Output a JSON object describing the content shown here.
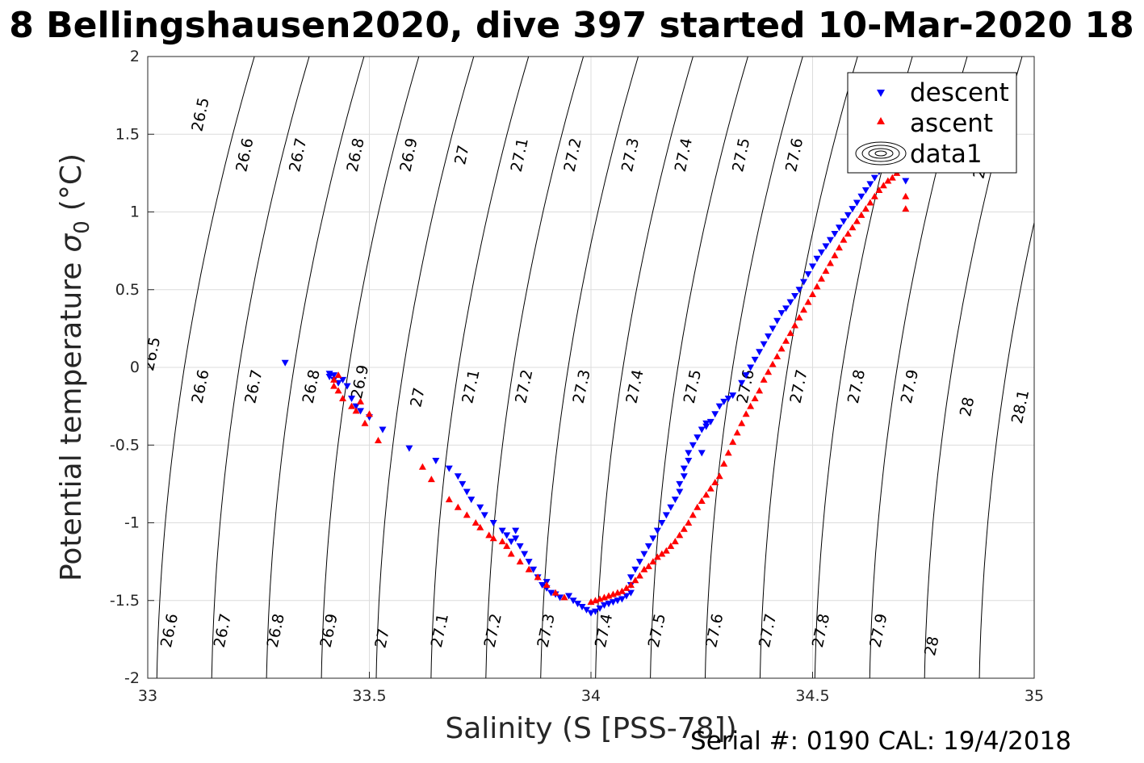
{
  "chart_data": {
    "type": "scatter",
    "title": "8 Bellingshausen2020, dive 397 started 10-Mar-2020 18",
    "xlabel": "Salinity (S [PSS-78])",
    "ylabel": "Potential temperature",
    "ylabel_symbol": "σ",
    "ylabel_subscript": "0",
    "ylabel_unit": "(°C)",
    "xlim": [
      33,
      35
    ],
    "ylim": [
      -2,
      2
    ],
    "x_ticks": [
      "33",
      "33.5",
      "34",
      "34.5",
      "35"
    ],
    "y_ticks": [
      "-2",
      "-1.5",
      "-1",
      "-0.5",
      "0",
      "0.5",
      "1",
      "1.5",
      "2"
    ],
    "grid": true,
    "legend_position": "top-right",
    "legend": [
      "descent",
      "ascent",
      "data1"
    ],
    "footer": "Serial #: 0190  CAL: 19/4/2018",
    "colors": {
      "descent": "#0000ff",
      "ascent": "#ff0000",
      "contour": "#000000",
      "grid": "#dcdcdc"
    },
    "contours": [
      26.5,
      26.6,
      26.7,
      26.8,
      26.9,
      27,
      27.1,
      27.2,
      27.3,
      27.4,
      27.5,
      27.6,
      27.7,
      27.8,
      27.9,
      28,
      28.1
    ],
    "contour_labels": [
      {
        "text": "26.5",
        "x": 33.13,
        "y": 1.62
      },
      {
        "text": "26.6",
        "x": 33.23,
        "y": 1.36
      },
      {
        "text": "26.7",
        "x": 33.35,
        "y": 1.36
      },
      {
        "text": "26.8",
        "x": 33.48,
        "y": 1.36
      },
      {
        "text": "26.9",
        "x": 33.6,
        "y": 1.36
      },
      {
        "text": "27",
        "x": 33.72,
        "y": 1.36
      },
      {
        "text": "27.1",
        "x": 33.85,
        "y": 1.36
      },
      {
        "text": "27.2",
        "x": 33.97,
        "y": 1.36
      },
      {
        "text": "27.3",
        "x": 34.1,
        "y": 1.36
      },
      {
        "text": "27.4",
        "x": 34.22,
        "y": 1.36
      },
      {
        "text": "27.5",
        "x": 34.35,
        "y": 1.36
      },
      {
        "text": "27.6",
        "x": 34.47,
        "y": 1.36
      },
      {
        "text": "28",
        "x": 34.89,
        "y": 1.27
      },
      {
        "text": "26.5",
        "x": 33.02,
        "y": 0.08
      },
      {
        "text": "26.6",
        "x": 33.13,
        "y": -0.13
      },
      {
        "text": "26.7",
        "x": 33.25,
        "y": -0.13
      },
      {
        "text": "26.8",
        "x": 33.38,
        "y": -0.13
      },
      {
        "text": "26.9",
        "x": 33.49,
        "y": -0.1
      },
      {
        "text": "27",
        "x": 33.62,
        "y": -0.2
      },
      {
        "text": "27.1",
        "x": 33.74,
        "y": -0.13
      },
      {
        "text": "27.2",
        "x": 33.86,
        "y": -0.13
      },
      {
        "text": "27.3",
        "x": 33.99,
        "y": -0.13
      },
      {
        "text": "27.4",
        "x": 34.11,
        "y": -0.13
      },
      {
        "text": "27.5",
        "x": 34.24,
        "y": -0.13
      },
      {
        "text": "27.6",
        "x": 34.36,
        "y": -0.13
      },
      {
        "text": "27.7",
        "x": 34.48,
        "y": -0.13
      },
      {
        "text": "27.8",
        "x": 34.61,
        "y": -0.13
      },
      {
        "text": "27.9",
        "x": 34.73,
        "y": -0.13
      },
      {
        "text": "28",
        "x": 34.86,
        "y": -0.26
      },
      {
        "text": "28.1",
        "x": 34.98,
        "y": -0.26
      },
      {
        "text": "26.6",
        "x": 33.06,
        "y": -1.7
      },
      {
        "text": "26.7",
        "x": 33.18,
        "y": -1.7
      },
      {
        "text": "26.8",
        "x": 33.3,
        "y": -1.7
      },
      {
        "text": "26.9",
        "x": 33.42,
        "y": -1.7
      },
      {
        "text": "27",
        "x": 33.54,
        "y": -1.75
      },
      {
        "text": "27.1",
        "x": 33.67,
        "y": -1.7
      },
      {
        "text": "27.2",
        "x": 33.79,
        "y": -1.7
      },
      {
        "text": "27.3",
        "x": 33.91,
        "y": -1.7
      },
      {
        "text": "27.4",
        "x": 34.04,
        "y": -1.7
      },
      {
        "text": "27.5",
        "x": 34.16,
        "y": -1.7
      },
      {
        "text": "27.6",
        "x": 34.29,
        "y": -1.7
      },
      {
        "text": "27.7",
        "x": 34.41,
        "y": -1.7
      },
      {
        "text": "27.8",
        "x": 34.53,
        "y": -1.7
      },
      {
        "text": "27.9",
        "x": 34.66,
        "y": -1.7
      },
      {
        "text": "28",
        "x": 34.78,
        "y": -1.8
      }
    ],
    "series": [
      {
        "name": "descent",
        "marker": "triangle-down",
        "x": [
          33.31,
          33.41,
          33.41,
          33.42,
          33.42,
          33.43,
          33.44,
          33.45,
          33.46,
          33.47,
          33.48,
          33.5,
          33.53,
          33.59,
          33.65,
          33.68,
          33.7,
          33.71,
          33.72,
          33.73,
          33.75,
          33.76,
          33.78,
          33.8,
          33.81,
          33.82,
          33.83,
          33.83,
          33.84,
          33.85,
          33.86,
          33.87,
          33.88,
          33.89,
          33.9,
          33.9,
          33.91,
          33.92,
          33.93,
          33.95,
          33.96,
          33.97,
          33.98,
          33.99,
          34.0,
          34.01,
          34.02,
          34.03,
          34.04,
          34.05,
          34.06,
          34.07,
          34.08,
          34.09,
          34.09,
          34.09,
          34.1,
          34.11,
          34.12,
          34.13,
          34.14,
          34.15,
          34.16,
          34.17,
          34.18,
          34.19,
          34.2,
          34.2,
          34.21,
          34.21,
          34.22,
          34.22,
          34.23,
          34.24,
          34.25,
          34.26,
          34.26,
          34.25,
          34.27,
          34.28,
          34.29,
          34.3,
          34.31,
          34.32,
          34.34,
          34.35,
          34.36,
          34.37,
          34.38,
          34.39,
          34.4,
          34.41,
          34.42,
          34.43,
          34.44,
          34.45,
          34.46,
          34.47,
          34.48,
          34.49,
          34.5,
          34.51,
          34.52,
          34.53,
          34.54,
          34.55,
          34.56,
          34.57,
          34.58,
          34.59,
          34.6,
          34.61,
          34.62,
          34.63,
          34.64,
          34.65,
          34.66,
          34.67,
          34.68,
          34.69,
          34.7,
          34.71
        ],
        "y": [
          0.03,
          -0.04,
          -0.06,
          -0.05,
          -0.08,
          -0.1,
          -0.08,
          -0.12,
          -0.2,
          -0.25,
          -0.28,
          -0.32,
          -0.4,
          -0.52,
          -0.6,
          -0.65,
          -0.7,
          -0.75,
          -0.8,
          -0.85,
          -0.9,
          -0.95,
          -1.0,
          -1.05,
          -1.08,
          -1.12,
          -1.05,
          -1.1,
          -1.15,
          -1.2,
          -1.25,
          -1.3,
          -1.35,
          -1.4,
          -1.38,
          -1.42,
          -1.45,
          -1.46,
          -1.48,
          -1.47,
          -1.5,
          -1.52,
          -1.54,
          -1.56,
          -1.58,
          -1.57,
          -1.55,
          -1.53,
          -1.52,
          -1.51,
          -1.5,
          -1.49,
          -1.47,
          -1.45,
          -1.4,
          -1.35,
          -1.3,
          -1.25,
          -1.2,
          -1.15,
          -1.1,
          -1.05,
          -1.0,
          -0.95,
          -0.9,
          -0.85,
          -0.8,
          -0.75,
          -0.7,
          -0.65,
          -0.6,
          -0.55,
          -0.5,
          -0.45,
          -0.4,
          -0.38,
          -0.36,
          -0.55,
          -0.35,
          -0.3,
          -0.25,
          -0.22,
          -0.2,
          -0.18,
          -0.1,
          -0.05,
          0.0,
          0.05,
          0.1,
          0.15,
          0.2,
          0.25,
          0.3,
          0.35,
          0.38,
          0.42,
          0.46,
          0.5,
          0.55,
          0.6,
          0.65,
          0.7,
          0.74,
          0.78,
          0.82,
          0.86,
          0.9,
          0.94,
          0.98,
          1.02,
          1.06,
          1.1,
          1.14,
          1.18,
          1.22,
          1.26,
          1.3,
          1.34,
          1.38,
          1.42,
          1.3,
          1.2
        ]
      },
      {
        "name": "ascent",
        "marker": "triangle-up",
        "x": [
          33.42,
          33.42,
          33.43,
          33.43,
          33.44,
          33.46,
          33.47,
          33.48,
          33.49,
          33.5,
          33.52,
          33.62,
          33.64,
          33.68,
          33.7,
          33.72,
          33.74,
          33.75,
          33.77,
          33.78,
          33.8,
          33.81,
          33.82,
          33.84,
          33.86,
          33.88,
          33.9,
          33.92,
          33.94,
          34.0,
          34.01,
          34.02,
          34.03,
          34.04,
          34.05,
          34.06,
          34.07,
          34.08,
          34.09,
          34.1,
          34.11,
          34.12,
          34.13,
          34.14,
          34.15,
          34.16,
          34.17,
          34.18,
          34.19,
          34.2,
          34.21,
          34.22,
          34.23,
          34.24,
          34.25,
          34.26,
          34.27,
          34.28,
          34.29,
          34.3,
          34.31,
          34.32,
          34.33,
          34.34,
          34.35,
          34.36,
          34.37,
          34.38,
          34.39,
          34.4,
          34.41,
          34.42,
          34.43,
          34.44,
          34.45,
          34.46,
          34.47,
          34.48,
          34.49,
          34.5,
          34.51,
          34.52,
          34.53,
          34.54,
          34.55,
          34.56,
          34.57,
          34.58,
          34.59,
          34.6,
          34.61,
          34.62,
          34.63,
          34.64,
          34.65,
          34.66,
          34.67,
          34.68,
          34.69,
          34.7,
          34.71,
          34.71
        ],
        "y": [
          -0.08,
          -0.12,
          -0.15,
          -0.05,
          -0.2,
          -0.25,
          -0.28,
          -0.22,
          -0.36,
          -0.3,
          -0.47,
          -0.64,
          -0.72,
          -0.85,
          -0.9,
          -0.95,
          -1.0,
          -1.03,
          -1.08,
          -1.1,
          -1.12,
          -1.15,
          -1.2,
          -1.25,
          -1.3,
          -1.35,
          -1.4,
          -1.45,
          -1.48,
          -1.51,
          -1.5,
          -1.49,
          -1.48,
          -1.47,
          -1.46,
          -1.45,
          -1.44,
          -1.42,
          -1.4,
          -1.37,
          -1.34,
          -1.3,
          -1.28,
          -1.25,
          -1.22,
          -1.2,
          -1.18,
          -1.15,
          -1.12,
          -1.08,
          -1.04,
          -1.0,
          -0.95,
          -0.9,
          -0.86,
          -0.82,
          -0.78,
          -0.74,
          -0.7,
          -0.62,
          -0.55,
          -0.48,
          -0.42,
          -0.36,
          -0.3,
          -0.25,
          -0.2,
          -0.15,
          -0.08,
          -0.03,
          0.02,
          0.07,
          0.12,
          0.17,
          0.22,
          0.27,
          0.32,
          0.37,
          0.42,
          0.47,
          0.52,
          0.57,
          0.62,
          0.67,
          0.72,
          0.77,
          0.82,
          0.86,
          0.9,
          0.94,
          0.98,
          1.02,
          1.06,
          1.1,
          1.14,
          1.17,
          1.2,
          1.22,
          1.25,
          1.28,
          1.1,
          1.02
        ]
      }
    ]
  }
}
